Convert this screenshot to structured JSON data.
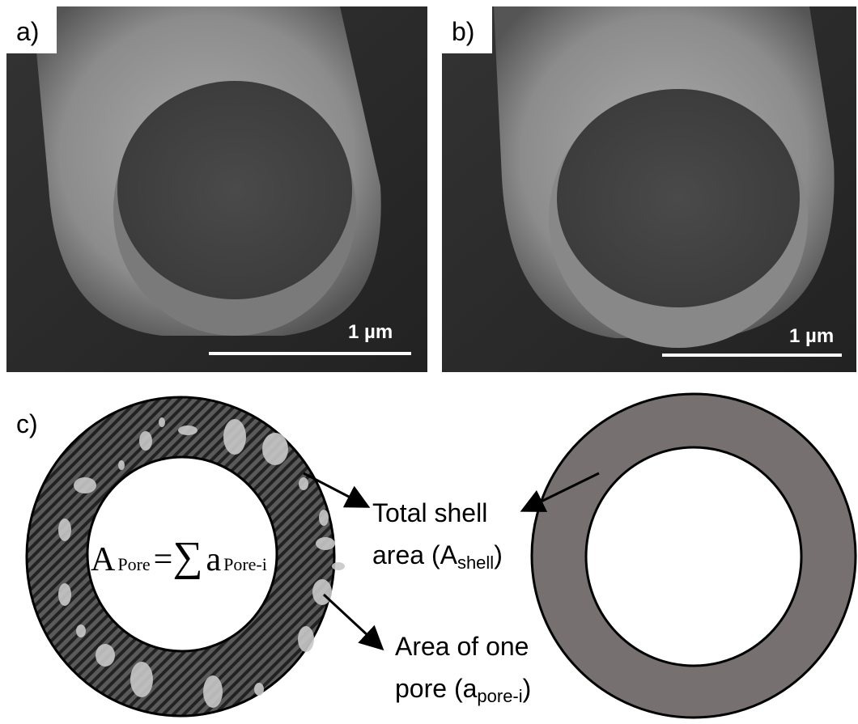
{
  "panels": [
    {
      "label": "a)",
      "scale_bar": "1 µm"
    },
    {
      "label": "b)",
      "scale_bar": "1 µm"
    }
  ],
  "diagram": {
    "label": "c)",
    "formula": {
      "lhs": "A",
      "lhs_sub": "Pore",
      "equals": "=",
      "sum": "∑",
      "rhs": "a",
      "rhs_sub": "Pore-i"
    },
    "shell_label": {
      "line1": "Total shell",
      "line2": "area (A",
      "sub": "shell",
      "close": ")"
    },
    "pore_label": {
      "line1": "Area of one",
      "line2": "pore (a",
      "sub": "pore-i",
      "close": ")"
    }
  }
}
